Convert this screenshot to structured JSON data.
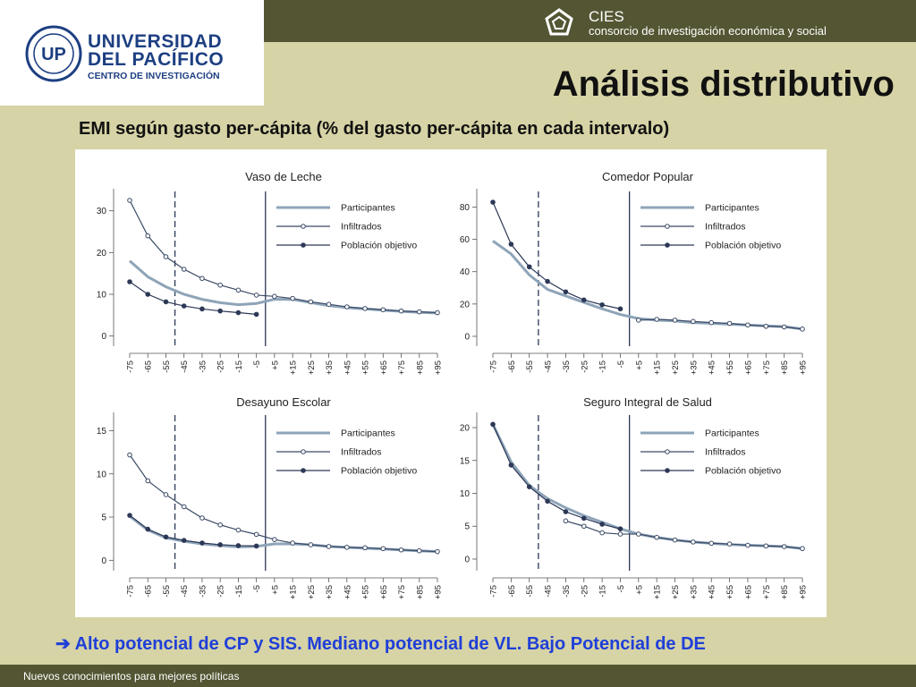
{
  "header": {
    "university_line1": "UNIVERSIDAD",
    "university_line2": "DEL PACÍFICO",
    "university_line3": "CENTRO DE INVESTIGACIÓN",
    "cies_name": "CIES",
    "cies_subtitle": "consorcio de investigación económica y social",
    "title": "Análisis distributivo",
    "subtitle": "EMI según gasto per-cápita (% del gasto per-cápita en cada intervalo)"
  },
  "conclusion": "➔ Alto potencial de CP y SIS. Mediano potencial de VL. Bajo Potencial de DE",
  "footer": {
    "text": "Nuevos conocimientos para mejores políticas"
  },
  "colors": {
    "participantes": "#8ea4b8",
    "infiltrados": "#3b4a66",
    "poblacion": "#2c3856",
    "accent_text": "#1f3fd8",
    "bar": "#545633"
  },
  "chart_data": [
    {
      "type": "line",
      "title": "Vaso de Leche",
      "categories": [
        "-75",
        "-65",
        "-55",
        "-45",
        "-35",
        "-25",
        "-15",
        "-5",
        "+5",
        "+15",
        "+25",
        "+35",
        "+45",
        "+55",
        "+65",
        "+75",
        "+85",
        "+95"
      ],
      "yticks": [
        0,
        10,
        20,
        30
      ],
      "ylim": [
        -2,
        34
      ],
      "legend": [
        "Participantes",
        "Infiltrados",
        "Población objetivo"
      ],
      "series": [
        {
          "name": "Participantes",
          "values": [
            18,
            14.2,
            11.8,
            10,
            8.8,
            8,
            7.5,
            7.8,
            8.8,
            8.8,
            8,
            7.3,
            6.8,
            6.5,
            6.2,
            5.9,
            5.7,
            5.5
          ]
        },
        {
          "name": "Infiltrados",
          "values": [
            32.5,
            24,
            19,
            16,
            13.8,
            12.2,
            11,
            9.8,
            9.5,
            9,
            8.2,
            7.6,
            7,
            6.6,
            6.3,
            6,
            5.8,
            5.6
          ]
        },
        {
          "name": "Población objetivo",
          "values": [
            13,
            10,
            8.2,
            7.2,
            6.5,
            6,
            5.6,
            5.2,
            null,
            null,
            null,
            null,
            null,
            null,
            null,
            null,
            null,
            null
          ]
        }
      ],
      "vlines": [
        "-55/-45",
        "-5/+5"
      ]
    },
    {
      "type": "line",
      "title": "Comedor Popular",
      "categories": [
        "-75",
        "-65",
        "-55",
        "-45",
        "-35",
        "-25",
        "-15",
        "-5",
        "+5",
        "+15",
        "+25",
        "+35",
        "+45",
        "+55",
        "+65",
        "+75",
        "+85",
        "+95"
      ],
      "yticks": [
        0,
        20,
        40,
        60,
        80
      ],
      "ylim": [
        -5,
        88
      ],
      "legend": [
        "Participantes",
        "Infiltrados",
        "Población objetivo"
      ],
      "series": [
        {
          "name": "Participantes",
          "values": [
            59,
            51,
            38,
            29,
            25,
            21,
            17,
            13.5,
            11,
            10,
            9.5,
            8.5,
            8,
            7.5,
            7,
            6.5,
            6,
            4.5
          ]
        },
        {
          "name": "Infiltrados",
          "values": [
            null,
            null,
            null,
            null,
            null,
            null,
            null,
            null,
            10,
            10.5,
            10,
            9.2,
            8.5,
            8,
            7,
            6.2,
            5.8,
            4.5
          ]
        },
        {
          "name": "Población objetivo",
          "values": [
            83,
            57,
            43,
            34,
            27.5,
            22.5,
            19.5,
            17,
            null,
            null,
            null,
            null,
            null,
            null,
            null,
            null,
            null,
            null
          ]
        }
      ],
      "vlines": [
        "-55/-45",
        "-5/+5"
      ]
    },
    {
      "type": "line",
      "title": "Desayuno Escolar",
      "categories": [
        "-75",
        "-65",
        "-55",
        "-45",
        "-35",
        "-25",
        "-15",
        "-5",
        "+5",
        "+15",
        "+25",
        "+35",
        "+45",
        "+55",
        "+65",
        "+75",
        "+85",
        "+95"
      ],
      "yticks": [
        0,
        5,
        10,
        15
      ],
      "ylim": [
        -1,
        16.5
      ],
      "legend": [
        "Participantes",
        "Infiltrados",
        "Población objetivo"
      ],
      "series": [
        {
          "name": "Participantes",
          "values": [
            5.1,
            3.5,
            2.6,
            2.2,
            1.9,
            1.7,
            1.55,
            1.6,
            1.9,
            1.9,
            1.8,
            1.6,
            1.5,
            1.4,
            1.3,
            1.2,
            1.1,
            1
          ]
        },
        {
          "name": "Infiltrados",
          "values": [
            12.2,
            9.2,
            7.6,
            6.2,
            4.9,
            4.1,
            3.5,
            3,
            2.4,
            2,
            1.8,
            1.6,
            1.5,
            1.45,
            1.35,
            1.2,
            1.1,
            1
          ]
        },
        {
          "name": "Población objetivo",
          "values": [
            5.2,
            3.6,
            2.7,
            2.3,
            2,
            1.8,
            1.7,
            1.65,
            null,
            null,
            null,
            null,
            null,
            null,
            null,
            null,
            null,
            null
          ]
        }
      ],
      "vlines": [
        "-55/-45",
        "-5/+5"
      ]
    },
    {
      "type": "line",
      "title": "Seguro Integral de Salud",
      "categories": [
        "-75",
        "-65",
        "-55",
        "-45",
        "-35",
        "-25",
        "-15",
        "-5",
        "+5",
        "+15",
        "+25",
        "+35",
        "+45",
        "+55",
        "+65",
        "+75",
        "+85",
        "+95"
      ],
      "yticks": [
        0,
        5,
        10,
        15,
        20
      ],
      "ylim": [
        -1.5,
        21.5
      ],
      "legend": [
        "Participantes",
        "Infiltrados",
        "Población objetivo"
      ],
      "series": [
        {
          "name": "Participantes",
          "values": [
            20.5,
            14.8,
            11.2,
            9.2,
            7.8,
            6.6,
            5.6,
            4.6,
            3.8,
            3.3,
            2.9,
            2.6,
            2.4,
            2.2,
            2.1,
            2,
            1.9,
            1.6
          ]
        },
        {
          "name": "Infiltrados",
          "values": [
            null,
            null,
            null,
            null,
            5.8,
            5,
            4,
            3.8,
            3.8,
            3.3,
            2.9,
            2.6,
            2.4,
            2.3,
            2.1,
            2,
            1.9,
            1.6
          ]
        },
        {
          "name": "Población objetivo",
          "values": [
            20.5,
            14.3,
            11,
            8.8,
            7.2,
            6.2,
            5.3,
            4.6,
            null,
            null,
            null,
            null,
            null,
            null,
            null,
            null,
            null,
            null
          ]
        }
      ],
      "vlines": [
        "-55/-45",
        "-5/+5"
      ]
    }
  ]
}
